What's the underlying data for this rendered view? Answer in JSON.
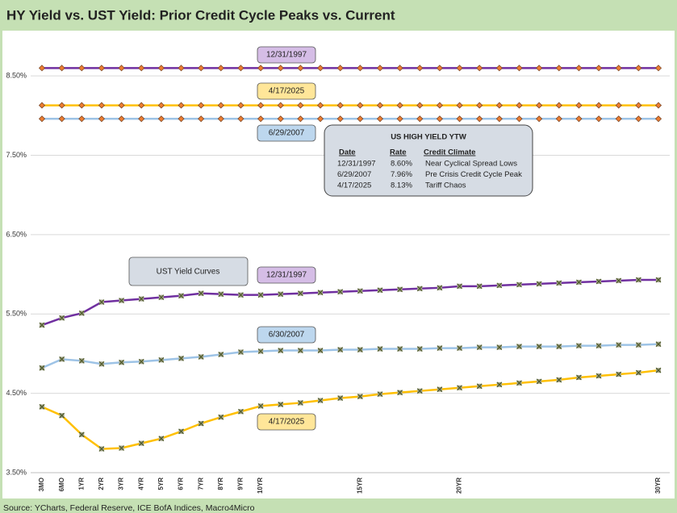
{
  "chart_data": {
    "type": "line",
    "title": "HY Yield vs. UST Yield: Prior Credit Cycle Peaks vs. Current",
    "source": "Source: YCharts, Federal Reserve, ICE BofA Indices, Macro4Micro",
    "categories": [
      "3MO",
      "6MO",
      "1YR",
      "2YR",
      "3YR",
      "4YR",
      "5YR",
      "6YR",
      "7YR",
      "8YR",
      "9YR",
      "10YR",
      null,
      null,
      null,
      null,
      "15YR",
      null,
      null,
      null,
      null,
      "20YR",
      null,
      null,
      null,
      null,
      null,
      null,
      null,
      null,
      null,
      "30YR"
    ],
    "ylim": [
      3.5,
      9.0
    ],
    "yticks": [
      {
        "value": 3.5,
        "label": "3.50%"
      },
      {
        "value": 4.5,
        "label": "4.50%"
      },
      {
        "value": 5.5,
        "label": "5.50%"
      },
      {
        "value": 6.5,
        "label": "6.50%"
      },
      {
        "value": 7.5,
        "label": "7.50%"
      },
      {
        "value": 8.5,
        "label": "8.50%"
      }
    ],
    "grid": true,
    "series": [
      {
        "label": "12/31/1997",
        "color": "#7030a0",
        "box": "#d5bde6",
        "marker": "diamond",
        "values": [
          8.6,
          8.6,
          8.6,
          8.6,
          8.6,
          8.6,
          8.6,
          8.6,
          8.6,
          8.6,
          8.6,
          8.6,
          8.6,
          8.6,
          8.6,
          8.6,
          8.6,
          8.6,
          8.6,
          8.6,
          8.6,
          8.6,
          8.6,
          8.6,
          8.6,
          8.6,
          8.6,
          8.6,
          8.6,
          8.6,
          8.6,
          8.6
        ]
      },
      {
        "label": "4/17/2025",
        "color": "#ffc000",
        "box": "#ffe699",
        "marker": "diamond",
        "values": [
          8.13,
          8.13,
          8.13,
          8.13,
          8.13,
          8.13,
          8.13,
          8.13,
          8.13,
          8.13,
          8.13,
          8.13,
          8.13,
          8.13,
          8.13,
          8.13,
          8.13,
          8.13,
          8.13,
          8.13,
          8.13,
          8.13,
          8.13,
          8.13,
          8.13,
          8.13,
          8.13,
          8.13,
          8.13,
          8.13,
          8.13,
          8.13
        ]
      },
      {
        "label": "6/29/2007",
        "color": "#9dc3e6",
        "box": "#bdd7ee",
        "marker": "diamond",
        "values": [
          7.96,
          7.96,
          7.96,
          7.96,
          7.96,
          7.96,
          7.96,
          7.96,
          7.96,
          7.96,
          7.96,
          7.96,
          7.96,
          7.96,
          7.96,
          7.96,
          7.96,
          7.96,
          7.96,
          7.96,
          7.96,
          7.96,
          7.96,
          7.96,
          7.96,
          7.96,
          7.96,
          7.96,
          7.96,
          7.96,
          7.96,
          7.96
        ]
      },
      {
        "label": "12/31/1997",
        "color": "#7030a0",
        "box": "#d5bde6",
        "marker": "cross",
        "values": [
          5.36,
          5.45,
          5.51,
          5.65,
          5.67,
          5.69,
          5.71,
          5.73,
          5.76,
          5.75,
          5.74,
          5.74,
          5.75,
          5.76,
          5.77,
          5.78,
          5.79,
          5.8,
          5.81,
          5.82,
          5.83,
          5.85,
          5.85,
          5.86,
          5.87,
          5.88,
          5.89,
          5.9,
          5.91,
          5.92,
          5.93,
          5.93
        ]
      },
      {
        "label": "6/30/2007",
        "color": "#9dc3e6",
        "box": "#bdd7ee",
        "marker": "cross",
        "values": [
          4.82,
          4.93,
          4.91,
          4.87,
          4.89,
          4.9,
          4.92,
          4.94,
          4.96,
          4.99,
          5.02,
          5.03,
          5.04,
          5.04,
          5.04,
          5.05,
          5.05,
          5.06,
          5.06,
          5.06,
          5.07,
          5.07,
          5.08,
          5.08,
          5.09,
          5.09,
          5.09,
          5.1,
          5.1,
          5.11,
          5.11,
          5.12
        ]
      },
      {
        "label": "4/17/2025",
        "color": "#ffc000",
        "box": "#ffe699",
        "marker": "cross",
        "values": [
          4.33,
          4.22,
          3.98,
          3.8,
          3.81,
          3.87,
          3.93,
          4.02,
          4.12,
          4.2,
          4.27,
          4.34,
          4.36,
          4.38,
          4.41,
          4.44,
          4.46,
          4.49,
          4.51,
          4.53,
          4.55,
          4.57,
          4.59,
          4.61,
          4.63,
          4.65,
          4.67,
          4.7,
          4.72,
          4.74,
          4.76,
          4.79
        ]
      }
    ],
    "ust_label": "UST Yield Curves",
    "hy_table": {
      "title": "US HIGH YIELD YTW",
      "headers": [
        "Date",
        "Rate",
        "Credit Climate"
      ],
      "rows": [
        [
          "12/31/1997",
          "8.60%",
          "Near Cyclical Spread Lows"
        ],
        [
          "6/29/2007",
          "7.96%",
          "Pre Crisis Credit Cycle Peak"
        ],
        [
          "4/17/2025",
          "8.13%",
          "Tariff Chaos"
        ]
      ]
    }
  }
}
